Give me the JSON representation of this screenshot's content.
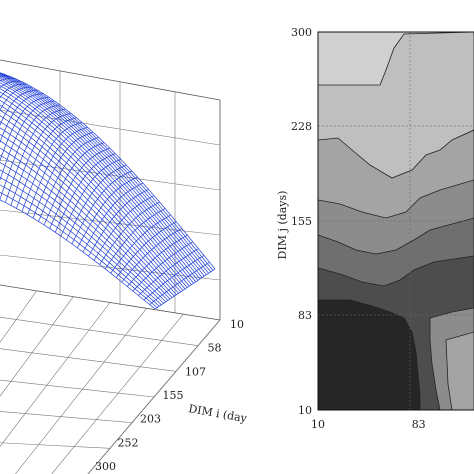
{
  "chart_data": [
    {
      "type": "surface",
      "title": "",
      "xlabel": "DIM i (day",
      "xticks": [
        "10",
        "58",
        "107",
        "155",
        "203",
        "252",
        "300"
      ],
      "z_values_shown": "mesh surface, peak near far corner, falling toward DIM i = 300",
      "colors": {
        "mesh": "#1f3fd6",
        "grid": "#555555"
      },
      "grid": true
    },
    {
      "type": "contour",
      "title": "",
      "xlabel": "",
      "ylabel": "DIM j (days)",
      "xticks": [
        "10",
        "83"
      ],
      "yticks": [
        "10",
        "83",
        "155",
        "228",
        "300"
      ],
      "xlim": [
        10,
        300
      ],
      "ylim": [
        10,
        300
      ],
      "grid": true,
      "fill_colors": [
        "#d0d0d0",
        "#bfbfbf",
        "#a4a4a4",
        "#8c8c8c",
        "#6f6f6f",
        "#4d4d4d",
        "#262626"
      ]
    }
  ]
}
